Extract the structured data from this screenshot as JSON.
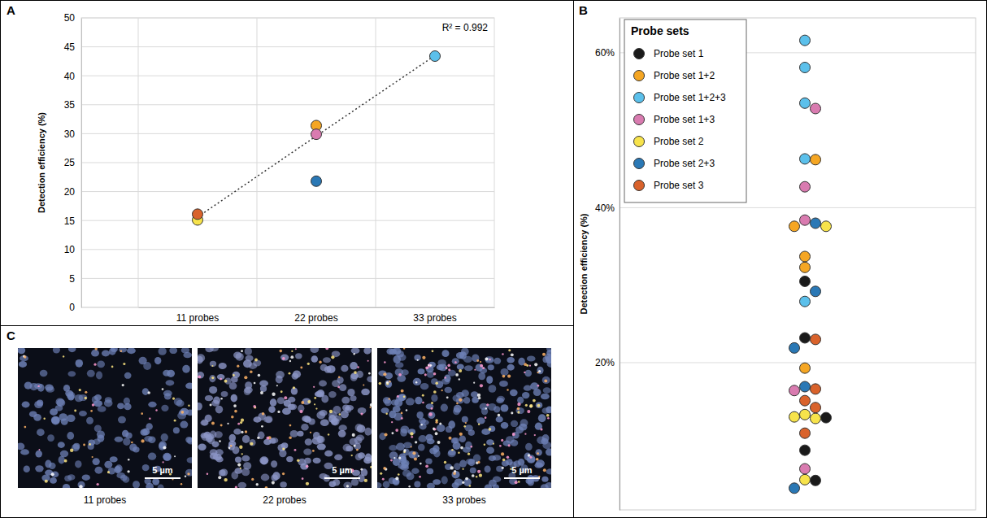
{
  "chart_data": [
    {
      "panel_label": "A",
      "type": "scatter",
      "categories": [
        "11 probes",
        "22 probes",
        "33 probes"
      ],
      "y_label": "Detection efficiency (%)",
      "ylim": [
        0,
        50
      ],
      "yticks": [
        0,
        5,
        10,
        15,
        20,
        25,
        30,
        35,
        40,
        45,
        50
      ],
      "grid": true,
      "annotations": [
        "R² = 0.992"
      ],
      "series": [
        {
          "type": "scatter",
          "marker": "circle",
          "color": "#f7e34b",
          "values": [
            15.1,
            null,
            null
          ]
        },
        {
          "type": "scatter",
          "marker": "circle",
          "color": "#d9622b",
          "values": [
            16.1,
            null,
            null
          ]
        },
        {
          "type": "scatter",
          "marker": "circle",
          "color": "#f5a623",
          "values": [
            null,
            31.4,
            null
          ]
        },
        {
          "type": "scatter",
          "marker": "circle",
          "color": "#d97bb0",
          "values": [
            null,
            29.9,
            null
          ]
        },
        {
          "type": "scatter",
          "marker": "circle",
          "color": "#2a78b5",
          "values": [
            null,
            21.8,
            null
          ]
        },
        {
          "type": "scatter",
          "marker": "circle",
          "color": "#5bc0eb",
          "values": [
            null,
            null,
            43.4
          ]
        },
        {
          "type": "line",
          "line_style": "dotted",
          "color": "#333333",
          "values": [
            15.6,
            29.6,
            43.5
          ]
        }
      ]
    },
    {
      "panel_label": "B",
      "type": "strip",
      "y_label": "Detection efficiency (%)",
      "ylim": [
        1,
        64.5
      ],
      "yticks": [
        {
          "value": 20,
          "label": "20%"
        },
        {
          "value": 40,
          "label": "40%"
        },
        {
          "value": 60,
          "label": "60%"
        }
      ],
      "grid": true,
      "tick_labels": "y",
      "legend": "top-left",
      "legend_title": "Probe sets",
      "series": [
        {
          "name": "Probe set 1",
          "color": "#1a1a1a",
          "values": [
            30.5,
            23.2,
            12.9,
            8.7,
            4.8
          ]
        },
        {
          "name": "Probe set 1+2",
          "color": "#f5a623",
          "values": [
            46.2,
            37.6,
            33.7,
            32.3,
            19.3
          ]
        },
        {
          "name": "Probe set 1+2+3",
          "color": "#5bc0eb",
          "values": [
            61.6,
            58.1,
            53.5,
            46.3,
            27.9
          ]
        },
        {
          "name": "Probe set 1+3",
          "color": "#d97bb0",
          "values": [
            52.8,
            42.7,
            38.4,
            16.4,
            6.3
          ]
        },
        {
          "name": "Probe set 2",
          "color": "#f7e34b",
          "values": [
            37.6,
            13.3,
            13.0,
            12.8,
            4.9
          ]
        },
        {
          "name": "Probe set 2+3",
          "color": "#2a78b5",
          "values": [
            38.0,
            29.2,
            21.9,
            16.9,
            3.8
          ]
        },
        {
          "name": "Probe set 3",
          "color": "#d9622b",
          "values": [
            23.0,
            16.6,
            15.1,
            14.2,
            10.9
          ]
        }
      ]
    }
  ],
  "images": {
    "panel_label": "C",
    "items": [
      {
        "caption": "11 probes",
        "scale_bar": "5 µm"
      },
      {
        "caption": "22 probes",
        "scale_bar": "5 µm"
      },
      {
        "caption": "33 probes",
        "scale_bar": "5 µm"
      }
    ]
  }
}
